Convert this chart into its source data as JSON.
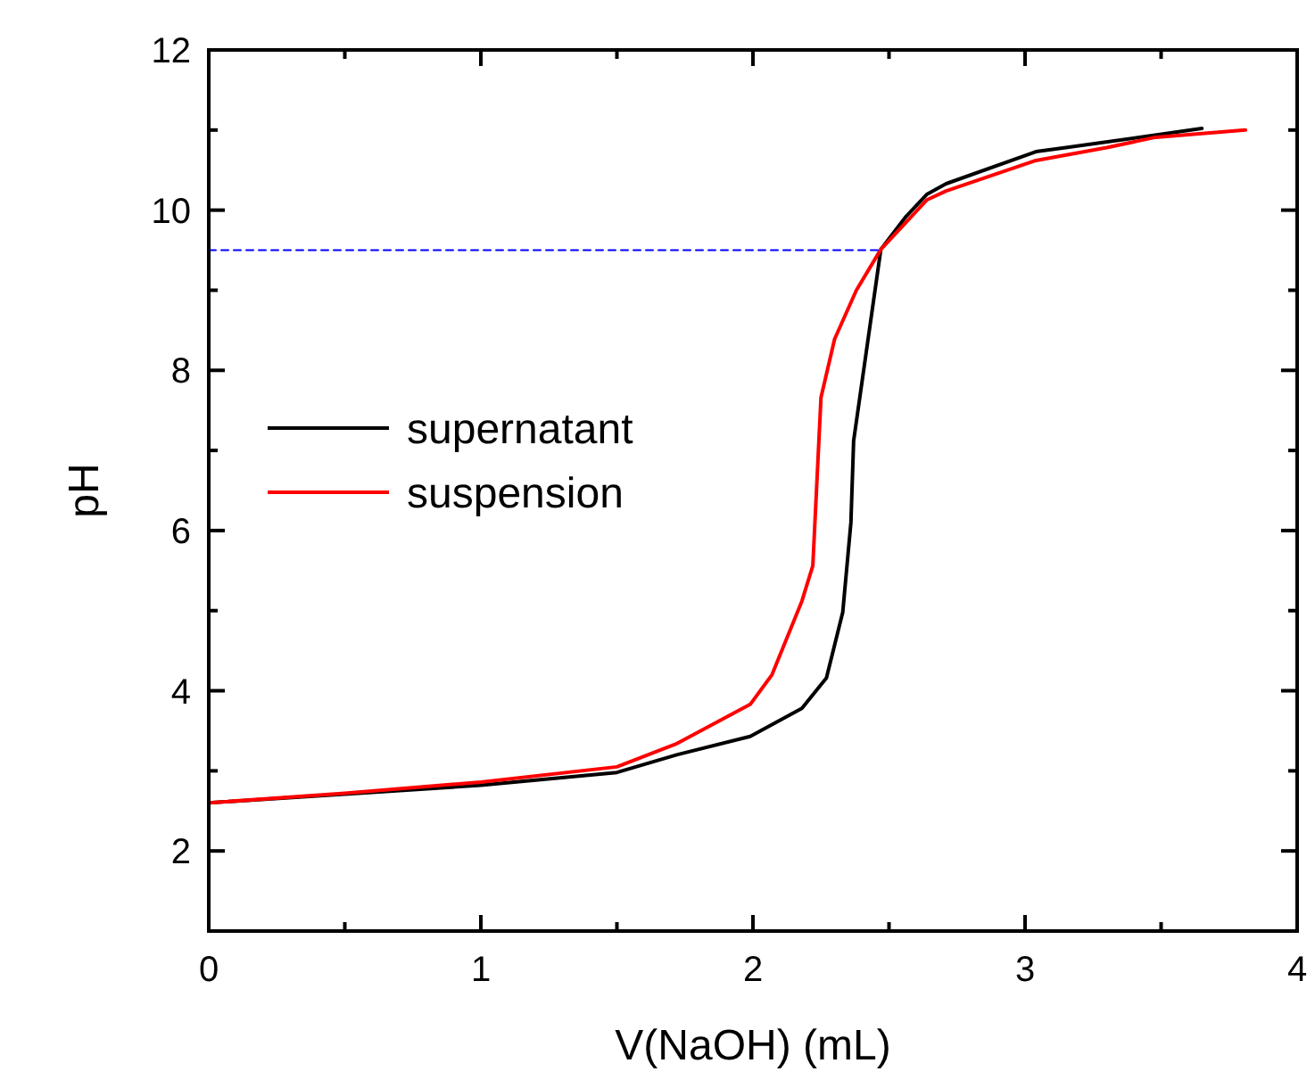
{
  "chart_data": {
    "type": "line",
    "xlabel": "V(NaOH) (mL)",
    "ylabel": "pH",
    "xlim": [
      0,
      4
    ],
    "ylim": [
      1,
      12
    ],
    "xticks": [
      0,
      {
        "value": 0.5,
        "label": null
      },
      1,
      {
        "value": 1.5,
        "label": null
      },
      2,
      {
        "value": 2.5,
        "label": null
      },
      3,
      {
        "value": 3.5,
        "label": null
      },
      4
    ],
    "yticks": [
      {
        "value": 1,
        "label": null
      },
      2,
      {
        "value": 3,
        "label": null
      },
      4,
      {
        "value": 5,
        "label": null
      },
      6,
      {
        "value": 7,
        "label": null
      },
      8,
      {
        "value": 9,
        "label": null
      },
      10,
      {
        "value": 11,
        "label": null
      },
      12
    ],
    "legend": "left",
    "grid": false,
    "line_style": "solid",
    "marker": "none",
    "series": [
      {
        "name": "supernatant",
        "color": "#000000",
        "x": [
          0,
          0.5,
          1,
          1.5,
          1.72,
          1.99,
          2.18,
          2.27,
          2.33,
          2.36,
          2.37,
          2.47,
          2.56,
          2.64,
          2.71,
          3.04,
          3.15,
          3.65
        ],
        "values": [
          2.6,
          2.71,
          2.82,
          2.98,
          3.2,
          3.43,
          3.78,
          4.16,
          4.98,
          6.1,
          7.12,
          9.51,
          9.91,
          10.2,
          10.33,
          10.73,
          10.78,
          11.02
        ]
      },
      {
        "name": "suspension",
        "color": "#ff0000",
        "x": [
          0,
          0.5,
          1,
          1.5,
          1.72,
          1.99,
          2.07,
          2.18,
          2.22,
          2.25,
          2.3,
          2.38,
          2.47,
          2.64,
          2.71,
          3.04,
          3.3,
          3.48,
          3.81
        ],
        "values": [
          2.6,
          2.72,
          2.86,
          3.05,
          3.34,
          3.83,
          4.2,
          5.12,
          5.56,
          7.66,
          8.39,
          9.0,
          9.51,
          10.13,
          10.24,
          10.62,
          10.78,
          10.91,
          11.0
        ]
      },
      {
        "type": "line",
        "color": "#0000ff",
        "line_style": "dashed",
        "x": [
          0,
          2.47
        ],
        "values": [
          9.5,
          9.5
        ]
      }
    ]
  }
}
